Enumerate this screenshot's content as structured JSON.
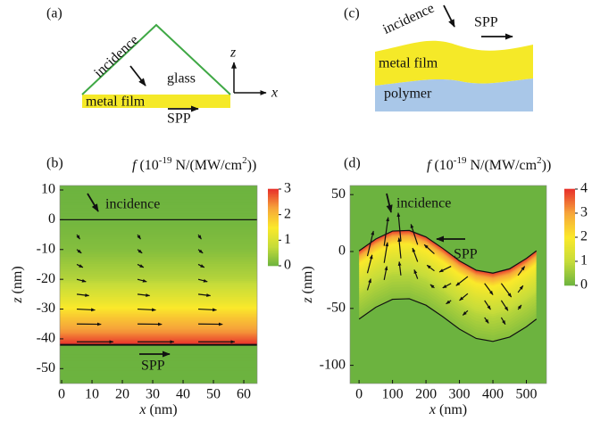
{
  "chart_data": [
    {
      "type": "field",
      "panel": "(b)",
      "colorbar_label": {
        "symbol": "f",
        "prefix": "(10",
        "exponent": "-19",
        "middle": " N/(MW/cm",
        "power": "2",
        "suffix": "))"
      },
      "xlabel": {
        "symbol": "x",
        "unit": "(nm)"
      },
      "ylabel": {
        "symbol": "z",
        "unit": "(nm)"
      },
      "xlim": [
        -0.6,
        64.4
      ],
      "xticks": [
        0,
        10,
        20,
        30,
        40,
        50,
        60
      ],
      "ylim": [
        -55,
        11.5
      ],
      "yticks": [
        10,
        0,
        -10,
        -20,
        -30,
        -40,
        -50
      ],
      "clim": [
        0,
        3
      ],
      "cticks": [
        0,
        1,
        2,
        3
      ],
      "colormap": [
        "#6cb33f",
        "#c6dc3a",
        "#fbe92a",
        "#f6a63a",
        "#e8312b"
      ],
      "interfaces": [
        0,
        -42
      ],
      "field_profile": {
        "z": [
          11.5,
          0,
          -10,
          -20,
          -28,
          -33,
          -38,
          -42,
          -42,
          -55
        ],
        "f": [
          0,
          0.05,
          0.2,
          0.6,
          1.3,
          1.9,
          2.4,
          3,
          0,
          0
        ]
      },
      "arrows": {
        "x": [
          5,
          25,
          45
        ],
        "z": [
          -5,
          -10,
          -15,
          -20,
          -25,
          -30,
          -35,
          -41
        ],
        "u": [
          1,
          1.5,
          2,
          3,
          4,
          6,
          8,
          12
        ],
        "w": [
          -1.5,
          -1.2,
          -1,
          -0.8,
          -0.5,
          -0.3,
          -0.1,
          0
        ]
      },
      "annotations": [
        "incidence",
        "SPP"
      ]
    },
    {
      "type": "field",
      "panel": "(d)",
      "colorbar_label": {
        "symbol": "f",
        "prefix": "(10",
        "exponent": "-19",
        "middle": " N/(MW/cm",
        "power": "2",
        "suffix": "))"
      },
      "xlabel": {
        "symbol": "x",
        "unit": "(nm)"
      },
      "ylabel": {
        "symbol": "z",
        "unit": "(nm)"
      },
      "xlim": [
        -27,
        560
      ],
      "xticks": [
        0,
        100,
        200,
        300,
        400,
        500
      ],
      "ylim": [
        -116,
        58
      ],
      "yticks": [
        50,
        0,
        -50,
        -100
      ],
      "clim": [
        0,
        4
      ],
      "cticks": [
        0,
        1,
        2,
        3,
        4
      ],
      "colormap": [
        "#6cb33f",
        "#c6dc3a",
        "#fbe92a",
        "#f6a63a",
        "#e8312b"
      ],
      "surfaces": {
        "x": [
          0,
          50,
          100,
          150,
          200,
          250,
          300,
          350,
          400,
          450,
          500,
          530
        ],
        "top": [
          0.6,
          11,
          18,
          18.5,
          12.8,
          2.8,
          -8.2,
          -16.4,
          -19,
          -15.2,
          -6.1,
          0.6
        ],
        "bottom": [
          -59.4,
          -49,
          -42,
          -41.5,
          -47.2,
          -57.2,
          -68.2,
          -76.4,
          -79,
          -75.2,
          -66.1,
          -59.4
        ]
      },
      "field_profile": {
        "depth": [
          0,
          5,
          12,
          25,
          40,
          60
        ],
        "f": [
          4,
          3,
          2,
          1.4,
          0.8,
          0.3
        ]
      },
      "arrows": {
        "x": [
          25,
          25,
          25,
          75,
          75,
          75,
          125,
          125,
          125,
          175,
          175,
          175,
          225,
          225,
          225,
          275,
          275,
          275,
          325,
          325,
          325,
          375,
          375,
          375,
          425,
          425,
          425,
          475,
          475,
          475
        ],
        "z": [
          -4,
          -19,
          -34,
          5,
          -10,
          -25,
          9,
          -6,
          -21,
          6,
          -9,
          -24,
          -2,
          -17,
          -32,
          -13,
          -28,
          -43,
          -22,
          -37,
          -52,
          -28,
          -43,
          -58,
          -28,
          -43,
          -58,
          -21,
          -36,
          -51
        ],
        "u": [
          18,
          14,
          10,
          12,
          10,
          8,
          -8,
          -6,
          -5,
          -20,
          -15,
          -10,
          -30,
          -22,
          -12,
          -35,
          -25,
          -15,
          -35,
          -25,
          -15,
          25,
          18,
          12,
          30,
          20,
          12,
          20,
          15,
          10
        ],
        "w": [
          22,
          16,
          10,
          25,
          18,
          12,
          25,
          18,
          12,
          18,
          12,
          8,
          8,
          5,
          3,
          -5,
          -4,
          -3,
          -8,
          -6,
          -4,
          -10,
          -8,
          -5,
          -12,
          -9,
          -6,
          8,
          6,
          4
        ]
      },
      "annotations": [
        "incidence",
        "SPP"
      ]
    }
  ],
  "diagrams": {
    "a": {
      "label": "(a)",
      "incidence": "incidence",
      "glass": "glass",
      "film": "metal film",
      "spp": "SPP",
      "z_axis": "z",
      "x_axis": "x"
    },
    "c": {
      "label": "(c)",
      "incidence": "incidence",
      "spp": "SPP",
      "film": "metal film",
      "substrate": "polymer"
    }
  }
}
